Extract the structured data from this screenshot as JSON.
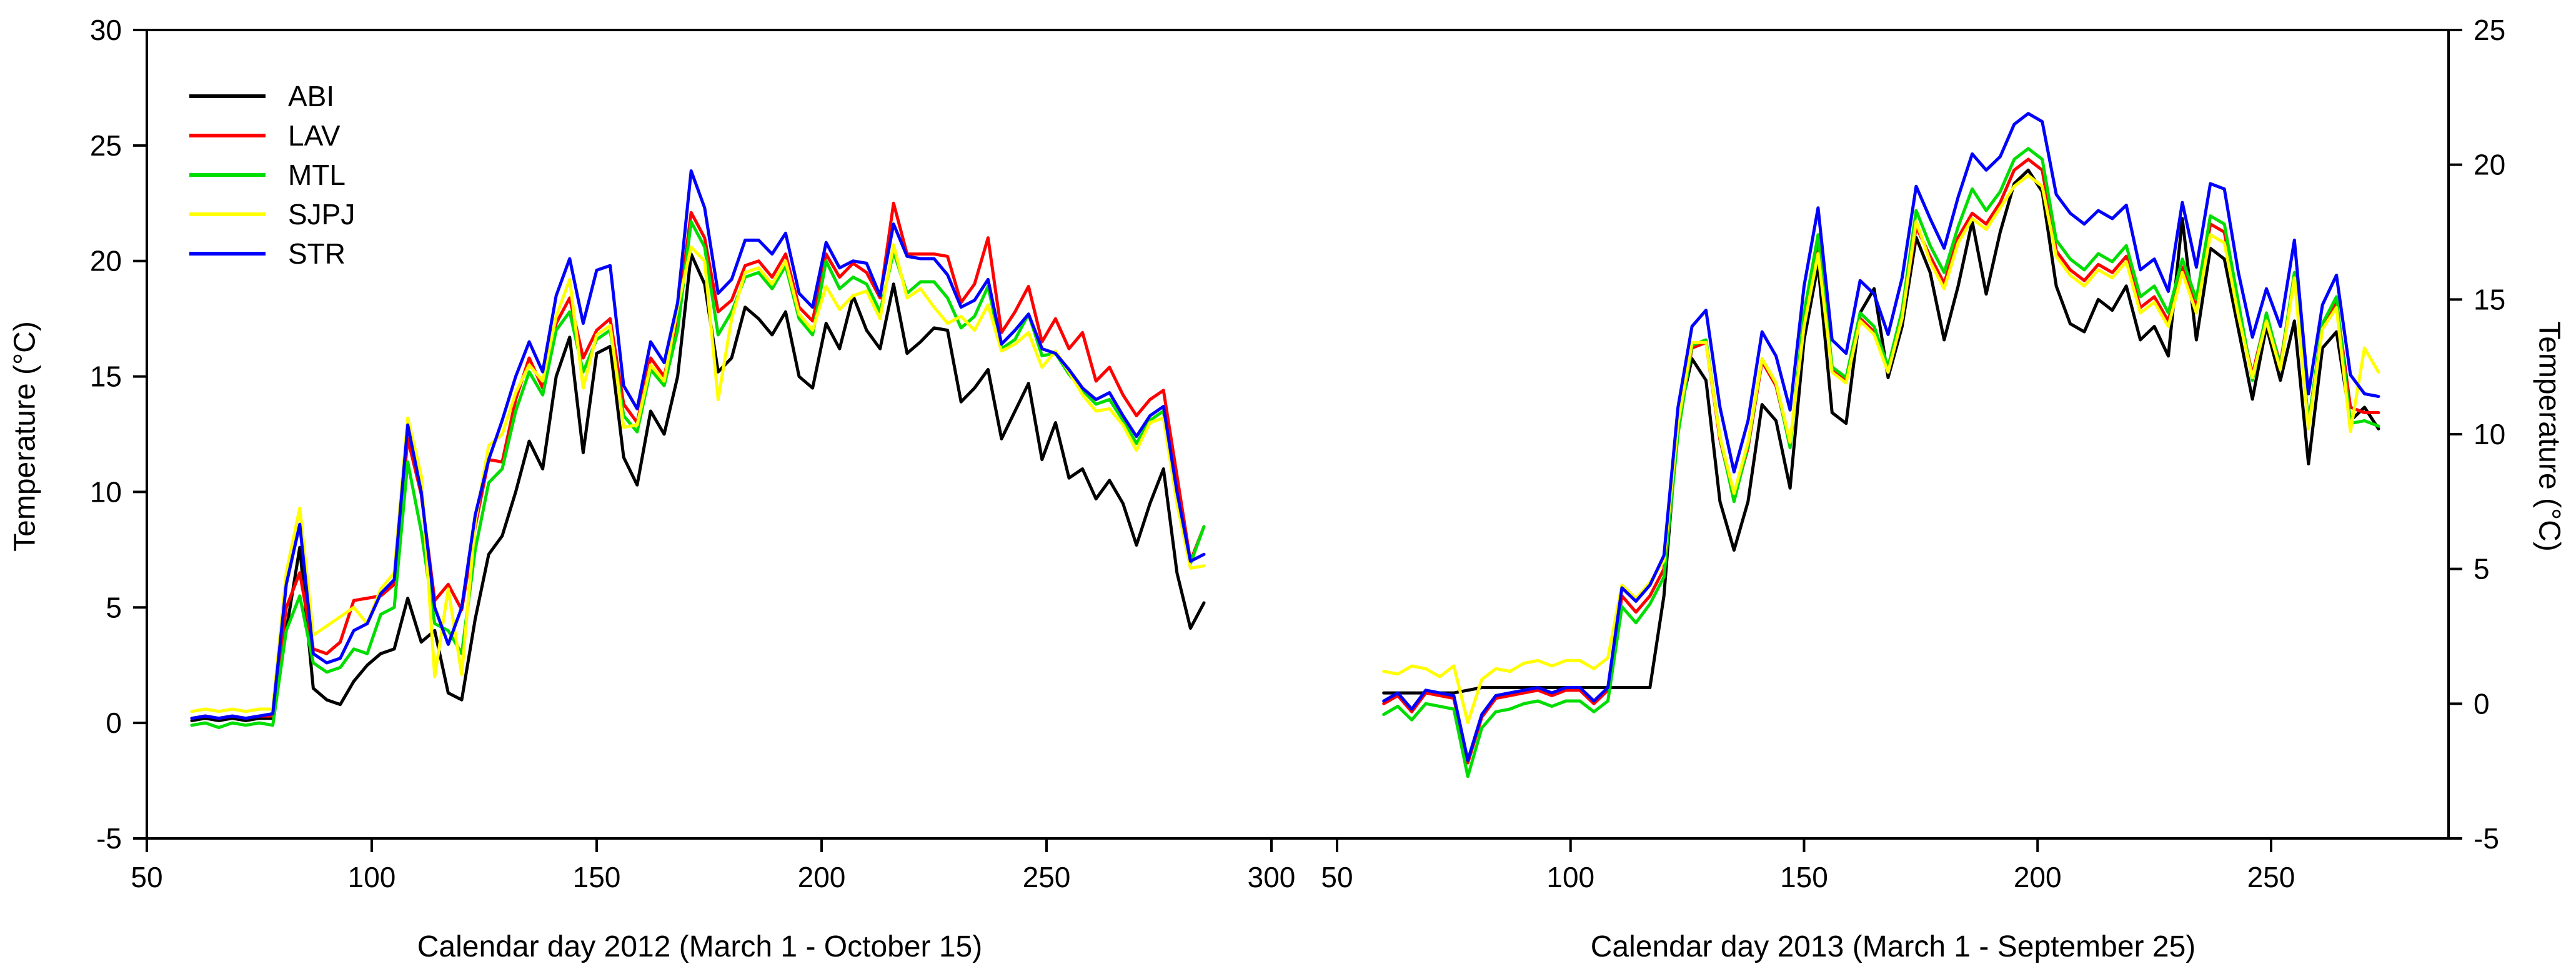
{
  "chart_data": [
    {
      "type": "line",
      "panel": "2012",
      "xlabel": "Calendar day 2012 (March 1 - October 15)",
      "ylabel": "Temperature (°C)",
      "y_axis_side": "left",
      "xlim": [
        50,
        300
      ],
      "ylim": [
        -5,
        30
      ],
      "xticks": [
        50,
        100,
        150,
        200,
        250,
        300
      ],
      "yticks": [
        30,
        25,
        20,
        15,
        10,
        5,
        0,
        -5
      ],
      "grid": false,
      "legend_position": "upper left",
      "x": [
        60,
        63,
        66,
        69,
        72,
        75,
        78,
        81,
        84,
        87,
        90,
        93,
        96,
        99,
        102,
        105,
        108,
        111,
        114,
        117,
        120,
        123,
        126,
        129,
        132,
        135,
        138,
        141,
        144,
        147,
        150,
        153,
        156,
        159,
        162,
        165,
        168,
        171,
        174,
        177,
        180,
        183,
        186,
        189,
        192,
        195,
        198,
        201,
        204,
        207,
        210,
        213,
        216,
        219,
        222,
        225,
        228,
        231,
        234,
        237,
        240,
        243,
        246,
        249,
        252,
        255,
        258,
        261,
        264,
        267,
        270,
        273,
        276,
        279,
        282,
        285
      ],
      "series": [
        {
          "name": "ABI",
          "color": "#000000",
          "values": [
            0.1,
            0.2,
            0.1,
            0.2,
            0.1,
            0.2,
            0.2,
            4.0,
            7.6,
            1.5,
            1.0,
            0.8,
            1.8,
            2.5,
            3.0,
            3.2,
            5.4,
            3.5,
            4.0,
            1.3,
            1.0,
            4.5,
            7.3,
            8.1,
            10.0,
            12.2,
            11.0,
            15.0,
            16.7,
            11.7,
            16.0,
            16.3,
            11.5,
            10.3,
            13.5,
            12.5,
            15.0,
            20.3,
            19.0,
            15.2,
            15.8,
            18.0,
            17.5,
            16.8,
            17.8,
            15.0,
            14.5,
            17.3,
            16.2,
            18.5,
            17.0,
            16.2,
            19.0,
            16.0,
            16.5,
            17.1,
            17.0,
            13.9,
            14.5,
            15.3,
            12.3,
            13.5,
            14.7,
            11.4,
            13.0,
            10.6,
            11.0,
            9.7,
            10.5,
            9.5,
            7.7,
            9.5,
            11.0,
            6.5,
            4.1,
            5.2
          ]
        },
        {
          "name": "LAV",
          "color": "#ff0000",
          "values": [
            0.2,
            0.3,
            0.2,
            0.3,
            0.2,
            0.3,
            0.3,
            5.0,
            6.5,
            3.2,
            3.0,
            3.5,
            5.3,
            5.4,
            5.5,
            6.0,
            12.3,
            9.9,
            5.3,
            6.0,
            4.9,
            8.5,
            11.4,
            11.3,
            14.0,
            15.8,
            14.5,
            17.3,
            18.4,
            15.8,
            17.0,
            17.5,
            13.8,
            13.0,
            15.8,
            15.0,
            17.5,
            22.1,
            21.0,
            17.8,
            18.3,
            19.8,
            20.0,
            19.3,
            20.3,
            18.0,
            17.4,
            20.3,
            19.3,
            19.9,
            19.5,
            18.4,
            22.5,
            20.3,
            20.3,
            20.3,
            20.2,
            18.2,
            19.0,
            21.0,
            16.9,
            17.8,
            18.9,
            16.5,
            17.5,
            16.2,
            16.9,
            14.8,
            15.4,
            14.2,
            13.3,
            14.0,
            14.4,
            10.7,
            7.0,
            8.5
          ]
        },
        {
          "name": "MTL",
          "color": "#00dd00",
          "values": [
            -0.1,
            0.0,
            -0.2,
            0.0,
            -0.1,
            0.0,
            -0.1,
            4.0,
            5.5,
            2.6,
            2.2,
            2.4,
            3.2,
            3.0,
            4.7,
            5.0,
            11.3,
            8.3,
            4.3,
            4.0,
            3.0,
            7.5,
            10.4,
            11.0,
            13.5,
            15.2,
            14.2,
            17.0,
            17.8,
            15.2,
            16.6,
            17.0,
            13.3,
            12.6,
            15.3,
            14.6,
            17.0,
            21.7,
            20.6,
            16.8,
            17.8,
            19.3,
            19.5,
            18.8,
            19.8,
            17.5,
            16.8,
            20.0,
            18.8,
            19.3,
            19.0,
            17.8,
            20.4,
            18.6,
            19.1,
            19.1,
            18.4,
            17.1,
            17.6,
            18.9,
            16.2,
            16.6,
            17.7,
            15.9,
            16.0,
            15.1,
            14.4,
            13.8,
            14.0,
            13.1,
            12.1,
            13.1,
            13.5,
            9.8,
            6.9,
            8.5
          ]
        },
        {
          "name": "SJPJ",
          "color": "#ffff00",
          "values": [
            0.5,
            0.6,
            0.5,
            0.6,
            0.5,
            0.6,
            0.6,
            6.5,
            9.3,
            3.8,
            4.2,
            4.6,
            5.0,
            4.3,
            5.8,
            6.5,
            13.2,
            10.7,
            2.0,
            5.8,
            2.1,
            8.7,
            12.0,
            12.5,
            14.3,
            15.5,
            14.8,
            17.6,
            19.2,
            14.5,
            16.8,
            17.2,
            12.8,
            12.9,
            15.5,
            14.8,
            18.0,
            20.6,
            20.0,
            14.0,
            17.5,
            19.5,
            19.7,
            19.0,
            20.0,
            17.7,
            17.0,
            18.9,
            17.9,
            18.5,
            18.7,
            17.5,
            20.7,
            18.4,
            18.8,
            18.0,
            17.3,
            17.6,
            17.0,
            18.1,
            16.1,
            16.4,
            16.9,
            15.4,
            16.1,
            15.2,
            14.2,
            13.5,
            13.6,
            12.9,
            11.8,
            13.0,
            13.2,
            9.5,
            6.7,
            6.8
          ]
        },
        {
          "name": "STR",
          "color": "#0000ff",
          "values": [
            0.2,
            0.3,
            0.2,
            0.3,
            0.2,
            0.3,
            0.4,
            6.0,
            8.6,
            3.0,
            2.6,
            2.8,
            4.0,
            4.3,
            5.6,
            6.2,
            12.9,
            10.0,
            5.0,
            3.4,
            5.0,
            9.0,
            11.4,
            13.1,
            15.0,
            16.5,
            15.2,
            18.5,
            20.1,
            17.3,
            19.6,
            19.8,
            14.6,
            13.6,
            16.5,
            15.6,
            18.2,
            23.9,
            22.3,
            18.6,
            19.2,
            20.9,
            20.9,
            20.3,
            21.2,
            18.6,
            18.0,
            20.8,
            19.7,
            20.0,
            19.9,
            18.5,
            21.6,
            20.2,
            20.1,
            20.1,
            19.4,
            18.0,
            18.3,
            19.2,
            16.4,
            17.0,
            17.7,
            16.2,
            16.0,
            15.3,
            14.5,
            14.0,
            14.3,
            13.3,
            12.4,
            13.3,
            13.7,
            10.0,
            7.0,
            7.3
          ]
        }
      ]
    },
    {
      "type": "line",
      "panel": "2013",
      "xlabel": "Calendar day 2013 (March 1 - September 25)",
      "ylabel": "Temperature (°C)",
      "y_axis_side": "right",
      "xlim": [
        50,
        288
      ],
      "ylim": [
        -5,
        25
      ],
      "xticks": [
        50,
        100,
        150,
        200,
        250
      ],
      "yticks": [
        25,
        20,
        15,
        10,
        5,
        0,
        -5
      ],
      "grid": false,
      "legend_position": "none",
      "x": [
        60,
        63,
        66,
        69,
        72,
        75,
        78,
        81,
        84,
        87,
        90,
        93,
        96,
        99,
        102,
        105,
        108,
        111,
        114,
        117,
        120,
        123,
        126,
        129,
        132,
        135,
        138,
        141,
        144,
        147,
        150,
        153,
        156,
        159,
        162,
        165,
        168,
        171,
        174,
        177,
        180,
        183,
        186,
        189,
        192,
        195,
        198,
        201,
        204,
        207,
        210,
        213,
        216,
        219,
        222,
        225,
        228,
        231,
        234,
        237,
        240,
        243,
        246,
        249,
        252,
        255,
        258,
        261,
        264,
        267,
        270,
        273
      ],
      "series": [
        {
          "name": "ABI",
          "color": "#000000",
          "values": [
            0.4,
            0.4,
            0.4,
            0.4,
            0.4,
            0.4,
            0.5,
            0.6,
            0.6,
            0.6,
            0.6,
            0.6,
            0.6,
            0.6,
            0.6,
            0.6,
            0.6,
            0.6,
            0.6,
            0.6,
            4.0,
            10.5,
            12.8,
            12.0,
            7.5,
            5.7,
            7.5,
            11.1,
            10.5,
            8.0,
            13.5,
            16.3,
            10.8,
            10.4,
            14.5,
            15.4,
            12.1,
            14.0,
            17.3,
            16.0,
            13.5,
            15.5,
            17.9,
            15.2,
            17.5,
            19.3,
            19.8,
            19.0,
            15.5,
            14.1,
            13.8,
            15.0,
            14.6,
            15.5,
            13.5,
            14.0,
            12.9,
            18.0,
            13.5,
            16.9,
            16.5,
            13.9,
            11.3,
            14.0,
            12.0,
            14.2,
            8.9,
            13.2,
            13.8,
            10.5,
            11.0,
            10.2
          ]
        },
        {
          "name": "LAV",
          "color": "#ff0000",
          "values": [
            0.0,
            0.3,
            -0.3,
            0.4,
            0.3,
            0.2,
            -2.2,
            -0.5,
            0.2,
            0.3,
            0.4,
            0.5,
            0.3,
            0.5,
            0.5,
            0.0,
            0.5,
            4.0,
            3.4,
            4.0,
            5.0,
            10.2,
            13.2,
            13.4,
            9.8,
            7.6,
            9.5,
            12.7,
            11.8,
            9.6,
            14.2,
            17.0,
            12.4,
            12.0,
            14.3,
            13.8,
            12.4,
            14.4,
            17.7,
            16.6,
            15.6,
            17.3,
            18.2,
            17.8,
            18.6,
            19.8,
            20.2,
            19.8,
            16.8,
            16.1,
            15.7,
            16.3,
            16.0,
            16.6,
            14.7,
            15.1,
            14.2,
            16.2,
            14.7,
            17.8,
            17.5,
            14.6,
            12.2,
            14.4,
            12.6,
            15.9,
            10.4,
            14.0,
            14.9,
            11.0,
            10.8,
            10.8
          ]
        },
        {
          "name": "MTL",
          "color": "#00dd00",
          "values": [
            -0.4,
            -0.1,
            -0.6,
            0.0,
            -0.1,
            -0.2,
            -2.7,
            -0.9,
            -0.3,
            -0.2,
            0.0,
            0.1,
            -0.1,
            0.1,
            0.1,
            -0.3,
            0.1,
            3.6,
            3.0,
            3.7,
            4.7,
            10.0,
            13.3,
            13.5,
            9.9,
            7.5,
            9.6,
            12.8,
            11.9,
            9.5,
            14.5,
            17.4,
            12.5,
            12.1,
            14.5,
            14.0,
            12.5,
            14.6,
            18.3,
            17.0,
            16.0,
            17.7,
            19.1,
            18.3,
            19.0,
            20.2,
            20.6,
            20.2,
            17.2,
            16.5,
            16.1,
            16.7,
            16.4,
            17.0,
            15.1,
            15.5,
            14.5,
            16.5,
            15.0,
            18.1,
            17.8,
            14.9,
            12.0,
            14.5,
            12.5,
            16.0,
            10.4,
            14.1,
            15.1,
            10.4,
            10.5,
            10.3
          ]
        },
        {
          "name": "SJPJ",
          "color": "#ffff00",
          "values": [
            1.2,
            1.1,
            1.4,
            1.3,
            1.0,
            1.4,
            -0.7,
            0.9,
            1.3,
            1.2,
            1.5,
            1.6,
            1.4,
            1.6,
            1.6,
            1.3,
            1.7,
            4.4,
            3.9,
            4.5,
            5.3,
            10.4,
            13.4,
            13.4,
            9.9,
            7.8,
            9.7,
            12.8,
            11.9,
            9.7,
            14.0,
            16.7,
            12.3,
            11.9,
            14.2,
            13.7,
            12.3,
            14.3,
            17.9,
            16.4,
            15.4,
            17.1,
            18.0,
            17.6,
            18.4,
            19.2,
            19.6,
            19.2,
            16.6,
            15.9,
            15.5,
            16.1,
            15.8,
            16.4,
            14.5,
            14.9,
            14.0,
            16.0,
            14.5,
            17.4,
            17.1,
            14.4,
            12.1,
            14.2,
            12.4,
            15.8,
            10.2,
            13.9,
            14.7,
            10.1,
            13.2,
            12.3
          ]
        },
        {
          "name": "STR",
          "color": "#0000ff",
          "values": [
            0.1,
            0.4,
            -0.2,
            0.5,
            0.4,
            0.3,
            -2.1,
            -0.4,
            0.3,
            0.4,
            0.5,
            0.6,
            0.4,
            0.6,
            0.6,
            0.1,
            0.6,
            4.3,
            3.8,
            4.4,
            5.5,
            11.0,
            14.0,
            14.6,
            11.0,
            8.6,
            10.5,
            13.8,
            12.9,
            10.9,
            15.5,
            18.4,
            13.5,
            13.0,
            15.7,
            15.2,
            13.7,
            15.8,
            19.2,
            18.0,
            16.9,
            18.8,
            20.4,
            19.8,
            20.3,
            21.5,
            21.9,
            21.6,
            18.9,
            18.2,
            17.8,
            18.3,
            18.0,
            18.5,
            16.1,
            16.5,
            15.3,
            18.6,
            16.2,
            19.3,
            19.1,
            16.0,
            13.6,
            15.4,
            14.0,
            17.2,
            11.5,
            14.8,
            15.9,
            12.2,
            11.5,
            11.4
          ]
        }
      ]
    }
  ]
}
